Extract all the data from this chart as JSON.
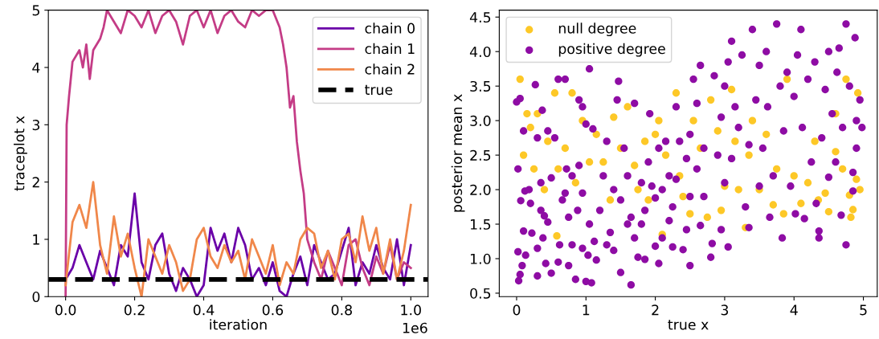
{
  "chart_data": [
    {
      "type": "line",
      "xlabel": "iteration",
      "ylabel": "traceplot x",
      "annotations": [
        "1e6"
      ],
      "xlim": [
        -0.05,
        1.05
      ],
      "ylim": [
        0,
        5
      ],
      "xticks": [
        {
          "value": 0,
          "label": "0.0"
        },
        0.2,
        0.4,
        0.6,
        0.8,
        {
          "value": 1,
          "label": "1.0"
        }
      ],
      "yticks": [
        0,
        1,
        2,
        3,
        4,
        5
      ],
      "grid": false,
      "legend": "top right",
      "line_style": "solid",
      "marker": "none",
      "x": [
        0,
        0.02,
        0.04,
        0.06,
        0.08,
        0.1,
        0.12,
        0.14,
        0.16,
        0.18,
        0.2,
        0.22,
        0.24,
        0.26,
        0.28,
        0.3,
        0.32,
        0.34,
        0.36,
        0.38,
        0.4,
        0.42,
        0.44,
        0.46,
        0.48,
        0.5,
        0.52,
        0.54,
        0.56,
        0.58,
        0.6,
        0.62,
        0.64,
        0.66,
        0.68,
        0.7,
        0.72,
        0.74,
        0.76,
        0.78,
        0.8,
        0.82,
        0.84,
        0.86,
        0.88,
        0.9,
        0.92,
        0.94,
        0.96,
        0.98,
        1.0
      ],
      "series": [
        {
          "name": "chain 0",
          "color": "#6a00a8",
          "values": [
            0.3,
            0.5,
            0.9,
            0.6,
            0.3,
            0.8,
            0.5,
            0.2,
            0.9,
            0.7,
            1.8,
            0.6,
            0.3,
            0.9,
            1.1,
            0.4,
            0.1,
            0.5,
            0.3,
            0.0,
            0.2,
            1.2,
            0.8,
            1.1,
            0.6,
            1.2,
            0.9,
            0.3,
            0.5,
            0.2,
            0.6,
            0.1,
            0.0,
            0.4,
            0.7,
            0.2,
            0.9,
            0.6,
            0.3,
            0.4,
            0.8,
            1.2,
            0.2,
            0.6,
            0.4,
            0.9,
            0.5,
            0.3,
            1.0,
            0.2,
            0.9
          ]
        },
        {
          "name": "chain 1",
          "color": "#c43c86",
          "x": [
            0,
            0.003,
            0.01,
            0.02,
            0.04,
            0.05,
            0.06,
            0.07,
            0.08,
            0.1,
            0.11,
            0.12,
            0.14,
            0.16,
            0.18,
            0.2,
            0.22,
            0.24,
            0.26,
            0.28,
            0.3,
            0.32,
            0.34,
            0.36,
            0.38,
            0.4,
            0.42,
            0.44,
            0.46,
            0.48,
            0.5,
            0.52,
            0.54,
            0.56,
            0.58,
            0.6,
            0.62,
            0.63,
            0.64,
            0.65,
            0.66,
            0.67,
            0.68,
            0.69,
            0.7,
            0.72,
            0.74,
            0.76,
            0.78,
            0.8,
            0.82,
            0.84,
            0.86,
            0.88,
            0.9,
            0.92,
            0.94,
            0.96,
            0.98,
            1.0
          ],
          "values": [
            0.0,
            3.0,
            3.5,
            4.1,
            4.3,
            4.0,
            4.4,
            3.8,
            4.3,
            4.5,
            4.7,
            5.0,
            4.8,
            4.6,
            5.0,
            4.9,
            4.7,
            5.0,
            4.6,
            4.9,
            5.0,
            4.8,
            4.4,
            4.9,
            5.0,
            4.7,
            5.0,
            4.6,
            4.9,
            5.0,
            4.8,
            4.7,
            5.0,
            4.9,
            5.0,
            5.0,
            4.7,
            4.4,
            4.0,
            3.3,
            3.5,
            2.7,
            2.2,
            1.8,
            1.0,
            0.6,
            0.3,
            0.8,
            0.5,
            0.2,
            0.9,
            1.0,
            0.5,
            0.2,
            0.7,
            0.4,
            0.9,
            0.3,
            0.6,
            0.5
          ]
        },
        {
          "name": "chain 2",
          "color": "#f0874a",
          "values": [
            0.2,
            1.3,
            1.6,
            1.2,
            2.0,
            0.9,
            0.4,
            1.4,
            0.7,
            1.1,
            0.5,
            0.0,
            1.0,
            0.7,
            0.4,
            0.9,
            0.6,
            0.1,
            0.3,
            1.0,
            1.2,
            0.7,
            0.5,
            0.9,
            0.6,
            0.8,
            0.3,
            1.0,
            0.7,
            0.4,
            0.9,
            0.2,
            0.6,
            0.4,
            1.0,
            1.2,
            1.1,
            0.5,
            0.8,
            0.3,
            1.0,
            1.1,
            0.6,
            1.4,
            0.8,
            1.2,
            0.4,
            1.0,
            0.3,
            0.8,
            1.6
          ]
        }
      ],
      "ref_lines": [
        {
          "axis": "y",
          "value": 0.3,
          "label": "true",
          "color": "#000000",
          "line_style": "dashed"
        }
      ]
    },
    {
      "type": "scatter",
      "xlabel": "true x",
      "ylabel": "posterior mean x",
      "xlim": [
        -0.25,
        5.2
      ],
      "ylim": [
        0.45,
        4.6
      ],
      "xticks": [
        0,
        1,
        2,
        3,
        4,
        5
      ],
      "yticks": [
        0.5,
        {
          "value": 1,
          "label": "1.0"
        },
        1.5,
        {
          "value": 2,
          "label": "2.0"
        },
        2.5,
        {
          "value": 3,
          "label": "3.0"
        },
        3.5,
        {
          "value": 4,
          "label": "4.0"
        },
        4.5
      ],
      "grid": false,
      "legend": "top left",
      "marker": "circle",
      "series": [
        {
          "name": "null degree",
          "color": "#fdc827",
          "x": [
            0.05,
            0.1,
            0.15,
            0.2,
            0.25,
            0.3,
            0.4,
            0.45,
            0.55,
            0.58,
            0.6,
            0.7,
            0.8,
            0.85,
            0.95,
            1.05,
            1.15,
            1.25,
            1.35,
            1.4,
            1.5,
            1.6,
            1.7,
            1.75,
            1.85,
            1.9,
            2.0,
            2.05,
            2.1,
            2.15,
            2.3,
            2.35,
            2.4,
            2.5,
            2.55,
            2.65,
            2.75,
            2.8,
            2.9,
            2.95,
            3.0,
            3.1,
            3.15,
            3.2,
            3.3,
            3.35,
            3.4,
            3.5,
            3.6,
            3.7,
            3.75,
            3.85,
            3.9,
            4.0,
            4.1,
            4.2,
            4.3,
            4.35,
            4.45,
            4.5,
            4.6,
            4.7,
            4.75,
            4.8,
            4.82,
            4.85,
            4.9,
            4.95,
            4.92,
            4.6
          ],
          "values": [
            3.6,
            2.5,
            3.1,
            2.9,
            2.3,
            3.1,
            2.0,
            2.7,
            3.4,
            1.33,
            2.3,
            2.6,
            3.4,
            2.1,
            3.0,
            2.4,
            2.8,
            2.4,
            1.85,
            3.05,
            2.6,
            3.2,
            2.35,
            2.0,
            2.7,
            1.85,
            2.8,
            3.0,
            1.35,
            2.5,
            3.4,
            2.2,
            1.9,
            1.65,
            3.0,
            2.6,
            1.6,
            3.3,
            2.85,
            1.7,
            2.05,
            3.45,
            2.7,
            2.0,
            1.45,
            2.5,
            3.0,
            2.0,
            2.8,
            1.78,
            2.3,
            1.65,
            3.6,
            2.2,
            1.8,
            2.1,
            2.7,
            1.85,
            1.95,
            1.68,
            2.55,
            2.3,
            3.6,
            1.92,
            1.6,
            1.71,
            2.15,
            2.0,
            3.4,
            3.1
          ]
        },
        {
          "name": "positive degree",
          "color": "#8e0ca4",
          "x": [
            0.02,
            0.03,
            0.05,
            0.08,
            0.1,
            0.13,
            0.06,
            0.12,
            0.18,
            0.2,
            0.02,
            0.1,
            0.0,
            0.05,
            0.27,
            0.22,
            0.3,
            0.3,
            0.35,
            0.4,
            0.38,
            0.42,
            0.45,
            0.5,
            0.5,
            0.35,
            0.3,
            0.37,
            0.45,
            0.6,
            0.7,
            0.55,
            0.62,
            0.6,
            0.66,
            0.7,
            0.75,
            0.75,
            0.72,
            0.8,
            0.8,
            0.85,
            0.88,
            0.9,
            0.95,
            0.95,
            1.0,
            1.05,
            1.03,
            1.08,
            1.12,
            1.15,
            1.1,
            1.0,
            0.95,
            0.9,
            1.05,
            1.2,
            1.25,
            1.3,
            1.3,
            1.35,
            1.4,
            1.4,
            1.45,
            1.47,
            1.5,
            1.5,
            1.55,
            1.6,
            1.6,
            1.65,
            1.7,
            1.65,
            1.7,
            1.75,
            1.8,
            1.8,
            1.85,
            1.85,
            1.9,
            1.92,
            1.95,
            2.0,
            2.0,
            2.05,
            2.05,
            2.1,
            2.1,
            2.15,
            2.2,
            2.2,
            2.25,
            2.25,
            2.3,
            2.3,
            2.35,
            2.4,
            2.45,
            2.45,
            2.5,
            2.5,
            2.5,
            2.55,
            2.6,
            2.6,
            2.65,
            2.65,
            2.7,
            2.7,
            2.8,
            2.82,
            2.85,
            2.9,
            2.95,
            2.95,
            3.0,
            3.0,
            3.05,
            3.05,
            3.1,
            3.1,
            3.15,
            3.2,
            3.25,
            3.3,
            3.35,
            3.35,
            3.4,
            3.45,
            3.5,
            3.5,
            3.55,
            3.6,
            3.62,
            3.65,
            3.7,
            3.75,
            3.8,
            3.83,
            3.85,
            3.9,
            3.95,
            4.0,
            4.02,
            4.05,
            4.1,
            4.12,
            4.15,
            4.2,
            4.25,
            4.3,
            4.32,
            4.36,
            4.36,
            4.4,
            4.45,
            4.5,
            4.5,
            4.55,
            4.6,
            4.62,
            4.65,
            4.68,
            4.7,
            4.75,
            4.75,
            4.8,
            4.85,
            4.85,
            4.88,
            4.9,
            4.95,
            4.98,
            4.9
          ],
          "values": [
            1.1,
            0.68,
            0.77,
            0.9,
            1.4,
            1.05,
            1.84,
            1.98,
            2.0,
            1.8,
            2.3,
            2.85,
            3.27,
            3.32,
            3.52,
            1.37,
            1.15,
            0.75,
            1.7,
            1.62,
            1.3,
            0.93,
            1.53,
            2.17,
            0.79,
            2.1,
            2.75,
            3.15,
            2.85,
            3.6,
            3.6,
            2.75,
            1.2,
            0.95,
            1.85,
            1.95,
            1.6,
            0.9,
            2.3,
            2.2,
            1.2,
            0.7,
            1.7,
            2.35,
            1.95,
            1.15,
            0.67,
            1.5,
            1.05,
            0.65,
            1.25,
            0.98,
            2.88,
            2.95,
            3.2,
            3.3,
            3.75,
            1.7,
            2.2,
            1.2,
            2.7,
            1.38,
            1.12,
            2.0,
            3.3,
            3.57,
            1.85,
            0.8,
            2.6,
            1.5,
            2.2,
            0.62,
            1.3,
            1.6,
            3.25,
            1.02,
            1.5,
            2.1,
            0.99,
            1.7,
            2.4,
            3.1,
            2.05,
            1.88,
            1.18,
            0.93,
            2.6,
            2.0,
            1.3,
            2.7,
            1.55,
            2.2,
            1.17,
            1.75,
            2.15,
            3.2,
            2.7,
            1.13,
            1.42,
            2.45,
            0.9,
            1.9,
            2.8,
            3.6,
            2.3,
            3.25,
            1.48,
            3.8,
            2.6,
            1.9,
            1.02,
            1.22,
            3.65,
            2.5,
            3.05,
            1.42,
            2.1,
            3.5,
            1.17,
            3.85,
            2.45,
            4.15,
            3.2,
            2.9,
            3.95,
            1.75,
            1.45,
            2.65,
            4.32,
            3.3,
            2.05,
            3.8,
            2.6,
            4.0,
            3.2,
            1.6,
            2.2,
            4.4,
            3.5,
            1.3,
            2.85,
            3.7,
            2.05,
            3.35,
            1.65,
            3.95,
            4.32,
            2.9,
            1.58,
            3.6,
            2.4,
            3.85,
            1.8,
            1.3,
            1.4,
            2.75,
            3.45,
            4.0,
            2.18,
            3.1,
            2.4,
            3.7,
            4.05,
            1.63,
            2.9,
            1.2,
            4.4,
            3.5,
            2.25,
            1.98,
            4.2,
            3.0,
            3.3,
            2.9,
            2.6
          ]
        }
      ]
    }
  ]
}
